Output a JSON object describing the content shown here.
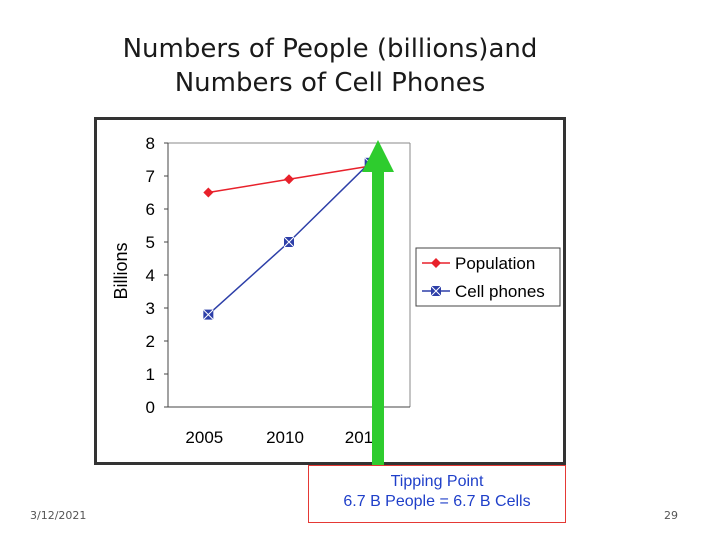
{
  "slide": {
    "title_line1": "Numbers of People (billions)and",
    "title_line2": "Numbers of Cell Phones",
    "date": "3/12/2021",
    "page_number": "29"
  },
  "callout": {
    "line1": "Tipping Point",
    "line2": "6.7 B People =  6.7 B Cells"
  },
  "colors": {
    "population": "#e8212b",
    "cell_phones": "#2d3fa8",
    "arrow": "#2ecc2e"
  },
  "chart_data": {
    "type": "line",
    "categories": [
      "2005",
      "2010",
      "2015"
    ],
    "yticks": [
      "0",
      "1",
      "2",
      "3",
      "4",
      "5",
      "6",
      "7",
      "8"
    ],
    "ylabel": "Billions",
    "ylim": [
      0,
      8
    ],
    "legend_position": "right",
    "series": [
      {
        "name": "Population",
        "values": [
          6.5,
          6.9,
          7.3
        ]
      },
      {
        "name": "Cell phones",
        "values": [
          2.8,
          5.0,
          7.4
        ]
      }
    ]
  }
}
